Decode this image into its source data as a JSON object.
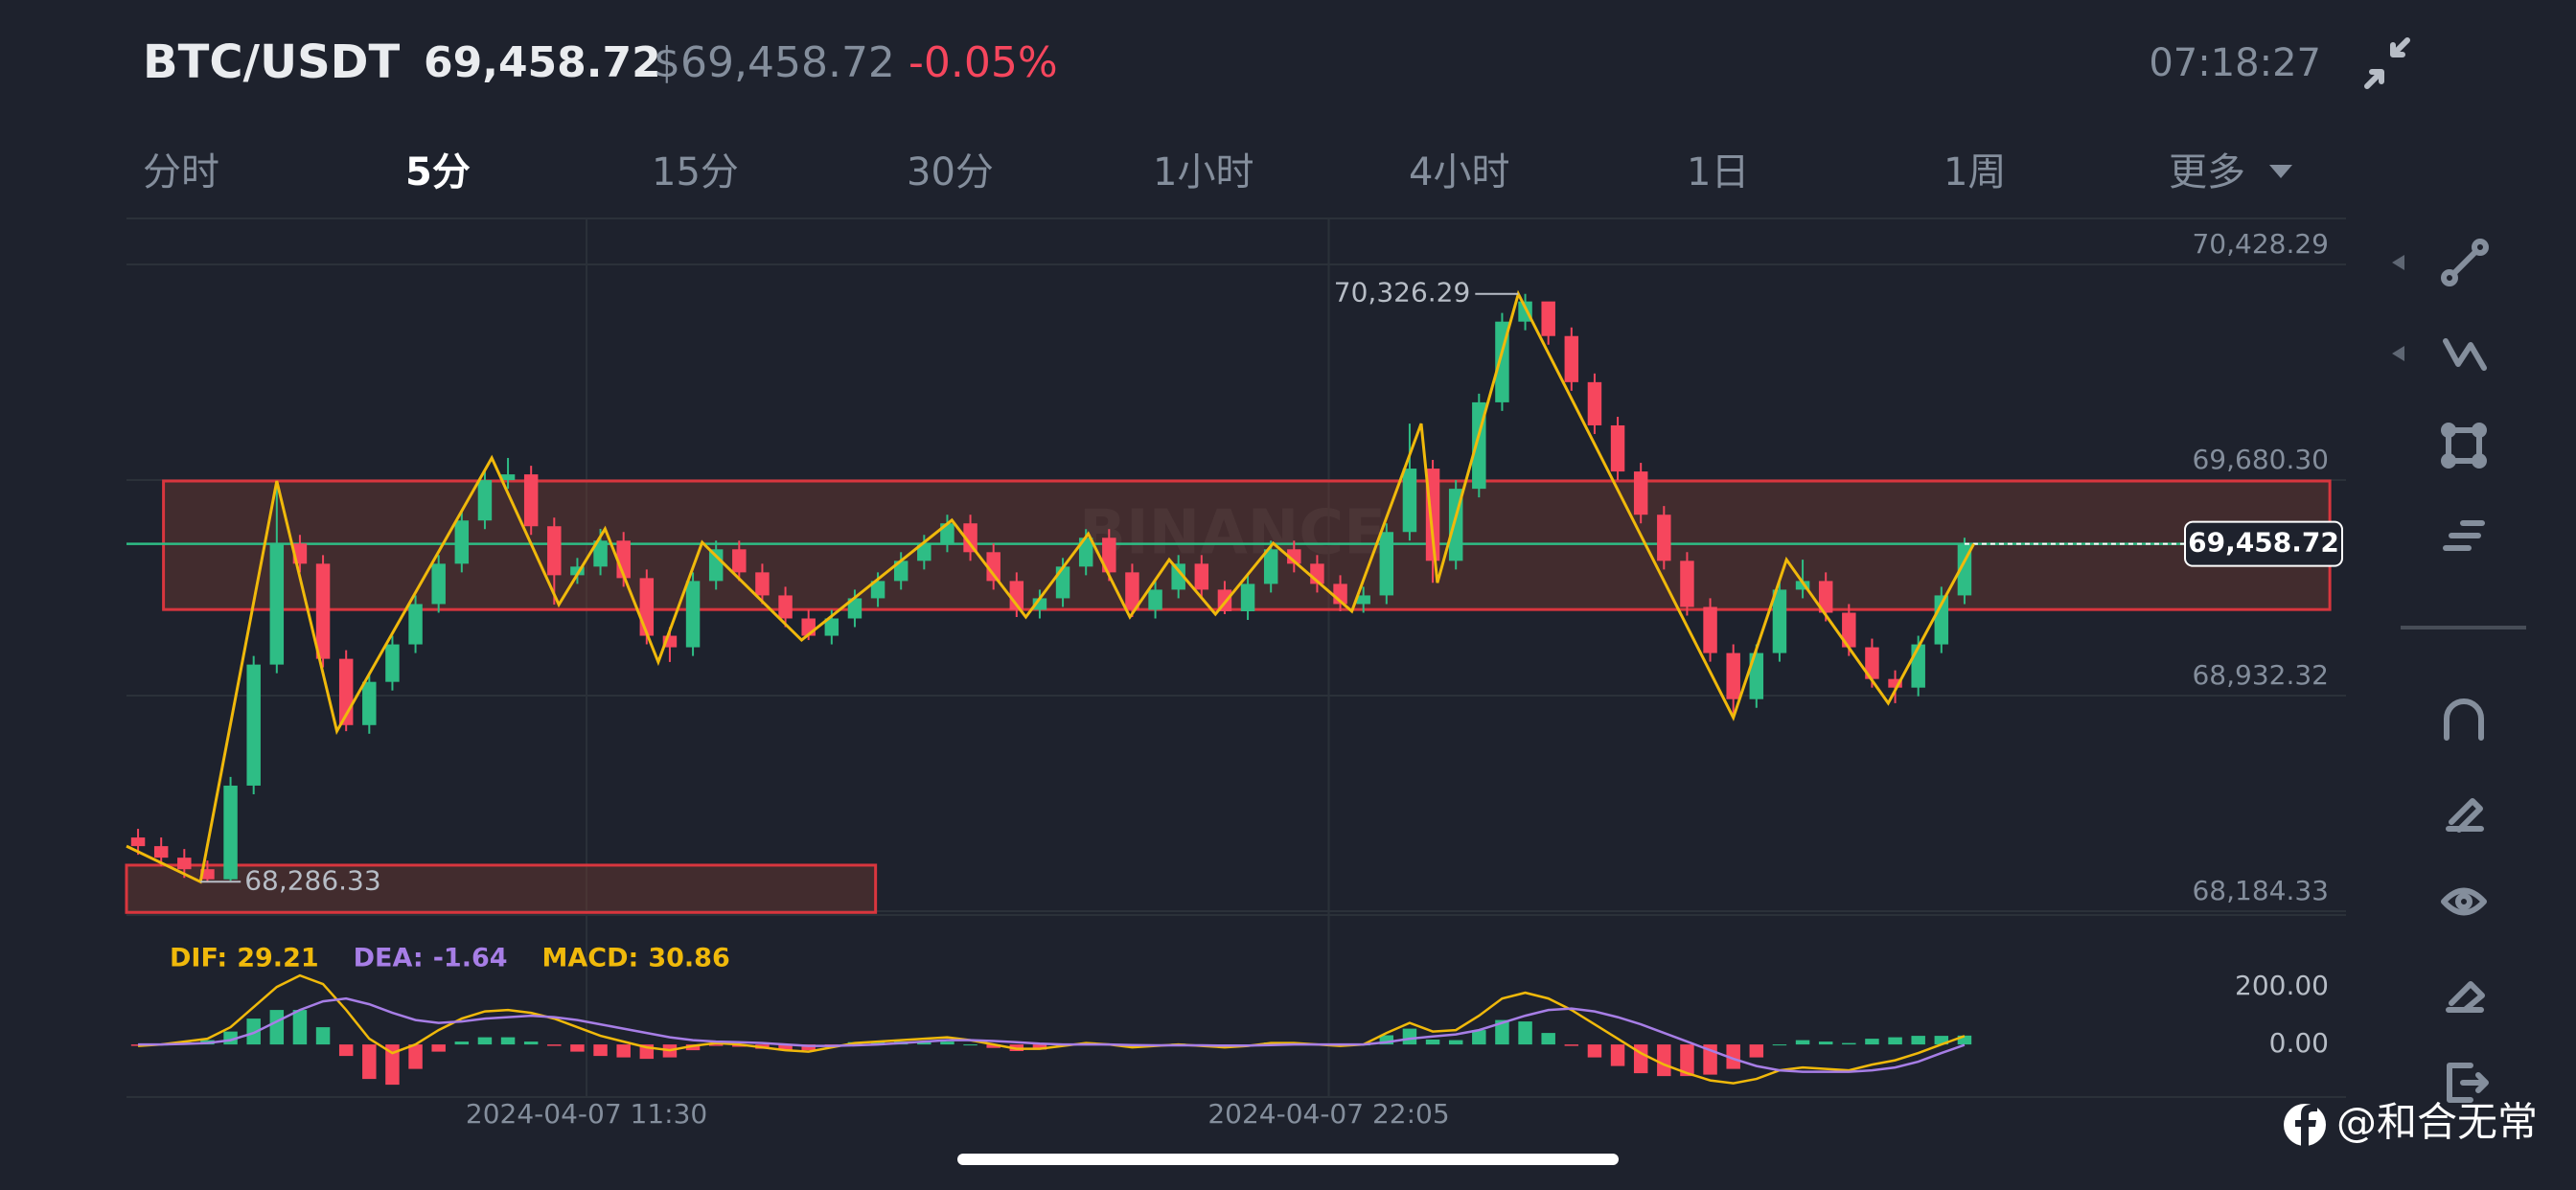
{
  "header": {
    "symbol": "BTC/USDT",
    "price": "69,458.72",
    "price_usd": "$69,458.72",
    "change": "-0.05%",
    "time": "07:18:27"
  },
  "tabs": [
    "分时",
    "5分",
    "15分",
    "30分",
    "1小时",
    "4小时",
    "1日",
    "1周",
    "更多"
  ],
  "watermark": "BINANCE",
  "footer": {
    "handle": "@和合无常"
  },
  "chart_data": {
    "type": "candlestick",
    "up_color": "#2ebd85",
    "down_color": "#f6465d",
    "open": [
      68440,
      68410,
      68370,
      68330,
      68295,
      68620,
      69040,
      69460,
      69390,
      69060,
      68830,
      68980,
      69110,
      69250,
      69390,
      69540,
      69680,
      69700,
      69520,
      69350,
      69380,
      69470,
      69340,
      69140,
      69100,
      69330,
      69440,
      69360,
      69280,
      69200,
      69140,
      69200,
      69270,
      69330,
      69400,
      69460,
      69530,
      69430,
      69330,
      69230,
      69270,
      69380,
      69480,
      69360,
      69230,
      69300,
      69390,
      69300,
      69225,
      69320,
      69440,
      69390,
      69320,
      69250,
      69280,
      69500,
      69720,
      69400,
      69650,
      69950,
      70230,
      70300,
      70180,
      70020,
      69870,
      69710,
      69560,
      69400,
      69240,
      69080,
      68920,
      69080,
      69300,
      69330,
      69220,
      69100,
      68990,
      68960,
      69110,
      69280
    ],
    "high": [
      68470,
      68440,
      68400,
      68360,
      68650,
      69070,
      69677,
      69490,
      69420,
      69090,
      69010,
      69140,
      69280,
      69420,
      69570,
      69710,
      69757,
      69730,
      69550,
      69410,
      69511,
      69500,
      69370,
      69170,
      69360,
      69470,
      69470,
      69390,
      69310,
      69230,
      69230,
      69300,
      69360,
      69430,
      69490,
      69560,
      69560,
      69460,
      69360,
      69300,
      69410,
      69510,
      69510,
      69390,
      69330,
      69420,
      69420,
      69330,
      69350,
      69470,
      69470,
      69420,
      69350,
      69310,
      69530,
      69876,
      69750,
      69680,
      69980,
      70260,
      70326.29,
      70290,
      70210,
      70050,
      69900,
      69740,
      69590,
      69430,
      69270,
      69110,
      69110,
      69330,
      69404,
      69360,
      69250,
      69130,
      69020,
      69140,
      69310,
      69480
    ],
    "low": [
      68380,
      68340,
      68300,
      68286.33,
      68290,
      68590,
      69010,
      69360,
      69030,
      68809,
      68800,
      68950,
      69080,
      69220,
      69360,
      69510,
      69650,
      69490,
      69248,
      69320,
      69350,
      69310,
      69110,
      69049,
      69070,
      69300,
      69330,
      69250,
      69170,
      69125,
      69110,
      69170,
      69240,
      69300,
      69370,
      69430,
      69400,
      69300,
      69205,
      69200,
      69240,
      69350,
      69330,
      69205,
      69200,
      69270,
      69270,
      69215,
      69195,
      69290,
      69360,
      69290,
      69225,
      69220,
      69250,
      69470,
      69324,
      69370,
      69620,
      69920,
      70200,
      70150,
      69990,
      69840,
      69680,
      69530,
      69370,
      69210,
      69050,
      68856,
      68890,
      69050,
      69270,
      69190,
      69070,
      68960,
      68906,
      68930,
      69080,
      69250
    ],
    "close": [
      68410,
      68370,
      68330,
      68295,
      68620,
      69040,
      69460,
      69390,
      69060,
      68830,
      68980,
      69110,
      69250,
      69390,
      69540,
      69680,
      69700,
      69520,
      69350,
      69380,
      69470,
      69340,
      69140,
      69100,
      69330,
      69440,
      69360,
      69280,
      69200,
      69140,
      69200,
      69270,
      69330,
      69400,
      69460,
      69530,
      69430,
      69330,
      69230,
      69270,
      69380,
      69480,
      69360,
      69230,
      69300,
      69390,
      69300,
      69225,
      69320,
      69440,
      69390,
      69320,
      69250,
      69280,
      69500,
      69720,
      69400,
      69650,
      69950,
      70230,
      70300,
      70180,
      70020,
      69870,
      69710,
      69560,
      69400,
      69240,
      69080,
      68920,
      69080,
      69300,
      69330,
      69220,
      69100,
      68990,
      68960,
      69110,
      69280,
      69458.72
    ],
    "xlim": [
      0,
      96
    ],
    "xticks": [
      {
        "value": 19.9,
        "label": "2024-04-07 11:30"
      },
      {
        "value": 52,
        "label": "2024-04-07 22:05"
      }
    ],
    "ylim": [
      68171,
      70588
    ],
    "yticks": [
      {
        "value": 68184.33,
        "label": "68,184.33"
      },
      {
        "value": 68932.32,
        "label": "68,932.32"
      },
      {
        "value": 69680.3,
        "label": "69,680.30"
      },
      {
        "value": 70428.29,
        "label": "70,428.29"
      }
    ],
    "last_price": {
      "value": 69458.72,
      "label": "69,458.72"
    },
    "zigzag": {
      "color": "#f0b90b",
      "x": [
        0,
        3.2,
        6.5,
        9.1,
        15.8,
        18.7,
        20.7,
        23,
        24.9,
        29.2,
        35.7,
        38.9,
        41.6,
        43.4,
        45.1,
        47.1,
        49.6,
        53,
        56,
        56.7,
        60.2,
        69.5,
        71.8,
        76.2,
        79.9
      ],
      "values": [
        68410,
        68286.33,
        69677,
        68809,
        69757,
        69248,
        69511,
        69049,
        69464,
        69125,
        69541,
        69205,
        69494,
        69205,
        69404,
        69215,
        69461,
        69225,
        69876,
        69324,
        70326.29,
        68856,
        69404,
        68906,
        69458.72
      ]
    },
    "annotations": [
      {
        "x": 60.2,
        "value": 70326.29,
        "label": "70,326.29"
      },
      {
        "x": 3.2,
        "value": 68286.33,
        "label": "68,286.33"
      }
    ],
    "boxes": [
      {
        "x": [
          1.6,
          95.3
        ],
        "y": [
          69231,
          69677
        ]
      },
      {
        "x": [
          0,
          32.4
        ],
        "y": [
          68180,
          68344
        ]
      }
    ],
    "macd": {
      "ylim": [
        -183,
        407
      ],
      "yticks": [
        {
          "value": 0,
          "label": "0.00"
        },
        {
          "value": 200,
          "label": "200.00"
        }
      ],
      "series": [
        {
          "name": "DIF:",
          "color": "#f0b90b",
          "value_label": "29.21",
          "values": [
            -5,
            0,
            10,
            20,
            60,
            130,
            200,
            240,
            210,
            120,
            20,
            -30,
            0,
            50,
            90,
            115,
            120,
            110,
            90,
            60,
            30,
            10,
            -10,
            -20,
            -5,
            5,
            0,
            -10,
            -20,
            -25,
            -10,
            5,
            10,
            15,
            20,
            25,
            15,
            0,
            -15,
            -15,
            -5,
            5,
            0,
            -10,
            -5,
            0,
            -5,
            -10,
            -5,
            5,
            5,
            0,
            -5,
            0,
            40,
            75,
            45,
            50,
            100,
            160,
            180,
            160,
            120,
            70,
            20,
            -30,
            -70,
            -100,
            -125,
            -135,
            -120,
            -90,
            -80,
            -85,
            -90,
            -70,
            -55,
            -30,
            0,
            29.21
          ]
        },
        {
          "name": "DEA:",
          "color": "#a77ee6",
          "value_label": "-1.64",
          "values": [
            0,
            0,
            2,
            5,
            15,
            40,
            80,
            120,
            150,
            160,
            140,
            110,
            85,
            75,
            80,
            90,
            95,
            100,
            95,
            85,
            70,
            55,
            40,
            25,
            15,
            10,
            8,
            5,
            0,
            -5,
            -5,
            -3,
            0,
            5,
            10,
            15,
            15,
            12,
            8,
            3,
            0,
            0,
            0,
            -2,
            -3,
            -3,
            -3,
            -4,
            -4,
            -2,
            0,
            0,
            0,
            0,
            8,
            20,
            28,
            35,
            50,
            75,
            100,
            120,
            125,
            115,
            95,
            70,
            40,
            10,
            -20,
            -50,
            -75,
            -90,
            -95,
            -95,
            -95,
            -90,
            -80,
            -60,
            -30,
            -1.64
          ]
        }
      ],
      "histogram": {
        "name": "MACD:",
        "color": "#f0b90b",
        "value_label": "30.86",
        "values": [
          -5,
          0,
          8,
          15,
          45,
          90,
          120,
          120,
          60,
          -40,
          -120,
          -140,
          -85,
          -25,
          10,
          25,
          25,
          10,
          -5,
          -25,
          -40,
          -45,
          -50,
          -45,
          -20,
          -5,
          -8,
          -15,
          -20,
          -20,
          -5,
          8,
          10,
          10,
          10,
          10,
          0,
          -12,
          -23,
          -18,
          -5,
          5,
          0,
          -8,
          -2,
          3,
          -2,
          -6,
          -1,
          7,
          5,
          0,
          -5,
          0,
          32,
          55,
          17,
          15,
          50,
          85,
          80,
          40,
          -5,
          -45,
          -75,
          -100,
          -110,
          -110,
          -105,
          -85,
          -45,
          0,
          15,
          10,
          5,
          20,
          25,
          30,
          30,
          30.86
        ]
      }
    }
  }
}
